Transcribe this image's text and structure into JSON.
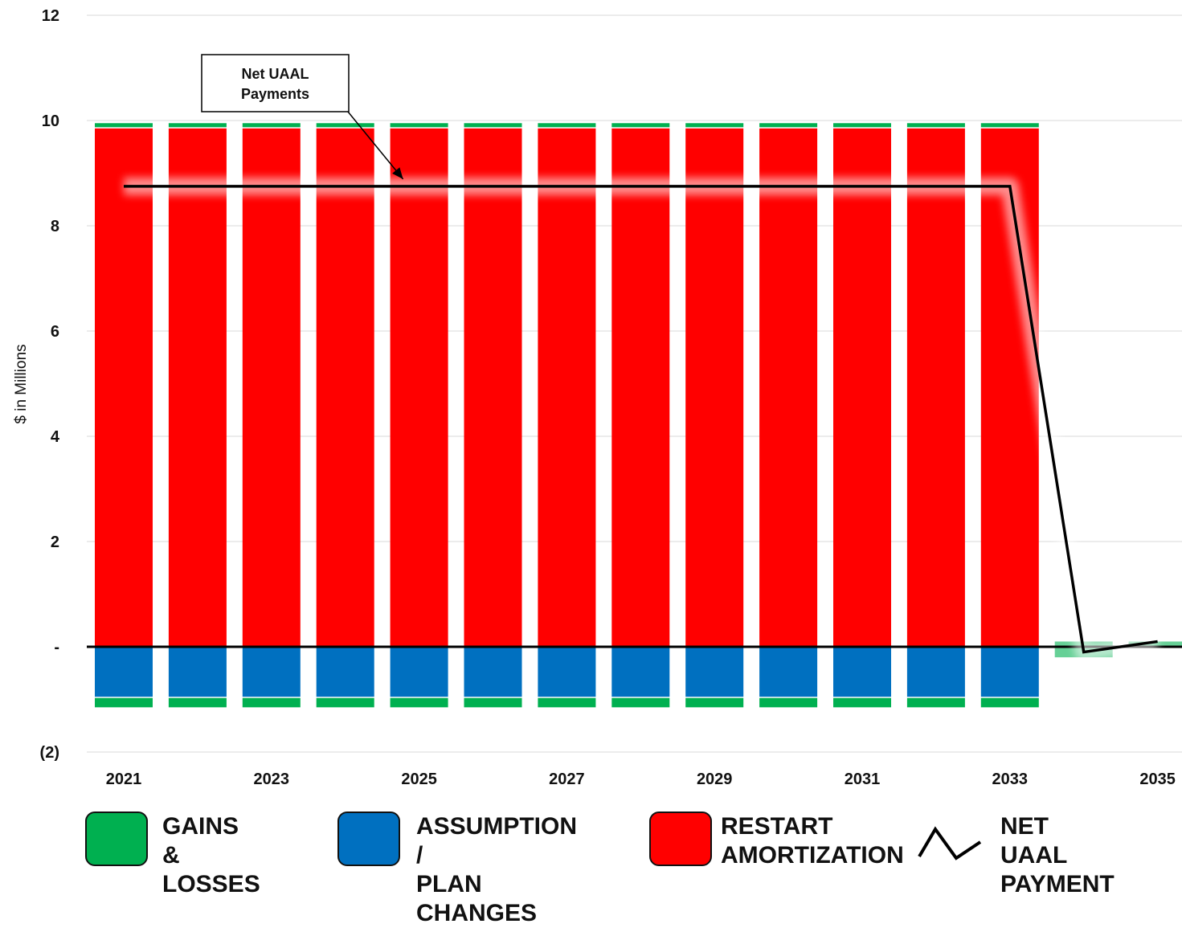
{
  "chart_data": {
    "type": "bar",
    "stacked": true,
    "categories": [
      "2021",
      "2022",
      "2023",
      "2024",
      "2025",
      "2026",
      "2027",
      "2028",
      "2029",
      "2030",
      "2031",
      "2032",
      "2033",
      "2034",
      "2035"
    ],
    "x_tick_labels": [
      "2021",
      "2023",
      "2025",
      "2027",
      "2029",
      "2031",
      "2033",
      "2035"
    ],
    "ylabel": "$ in Millions",
    "ylim": [
      -2,
      12
    ],
    "y_ticks": [
      -2,
      0,
      2,
      4,
      6,
      8,
      10,
      12
    ],
    "y_tick_labels": [
      "(2)",
      "-",
      "2",
      "4",
      "6",
      "8",
      "10",
      "12"
    ],
    "grid": true,
    "legend_position": "bottom",
    "series": [
      {
        "name": "GAINS & LOSSES",
        "kind": "bar",
        "color": "#00b050",
        "values": [
          0.1,
          0.1,
          0.1,
          0.1,
          0.1,
          0.1,
          0.1,
          0.1,
          0.1,
          0.1,
          0.1,
          0.1,
          0.1,
          0.1,
          0.1
        ]
      },
      {
        "name": "RESTART AMORTIZATION",
        "kind": "bar",
        "color": "#ff0000",
        "values": [
          9.85,
          9.85,
          9.85,
          9.85,
          9.85,
          9.85,
          9.85,
          9.85,
          9.85,
          9.85,
          9.85,
          9.85,
          9.85,
          0,
          0
        ]
      },
      {
        "name": "ASSUMPTION / PLAN CHANGES",
        "kind": "bar",
        "color": "#0070c0",
        "values": [
          -0.95,
          -0.95,
          -0.95,
          -0.95,
          -0.95,
          -0.95,
          -0.95,
          -0.95,
          -0.95,
          -0.95,
          -0.95,
          -0.95,
          -0.95,
          0,
          0
        ]
      },
      {
        "name": "GAINS & LOSSES (negative)",
        "kind": "bar-negative",
        "color": "#00b050",
        "values": [
          -0.2,
          -0.2,
          -0.2,
          -0.2,
          -0.2,
          -0.2,
          -0.2,
          -0.2,
          -0.2,
          -0.2,
          -0.2,
          -0.2,
          -0.2,
          -0.2,
          0
        ]
      },
      {
        "name": "NET UAAL PAYMENT",
        "kind": "line",
        "color": "#000000",
        "values": [
          8.75,
          8.75,
          8.75,
          8.75,
          8.75,
          8.75,
          8.75,
          8.75,
          8.75,
          8.75,
          8.75,
          8.75,
          8.75,
          -0.1,
          0.1
        ]
      }
    ],
    "annotations": [
      {
        "text": "Net UAAL\nPayments",
        "points_to": {
          "x": "2025",
          "y": 8.75
        }
      }
    ]
  },
  "legend": {
    "items": [
      {
        "label": "GAINS &\nLOSSES",
        "color": "#00b050",
        "kind": "swatch"
      },
      {
        "label": "ASSUMPTION /\nPLAN CHANGES",
        "color": "#0070c0",
        "kind": "swatch"
      },
      {
        "label": "RESTART\nAMORTIZATION",
        "color": "#ff0000",
        "kind": "swatch"
      },
      {
        "label": "NET UAAL\nPAYMENT",
        "color": "#000000",
        "kind": "line"
      }
    ]
  }
}
